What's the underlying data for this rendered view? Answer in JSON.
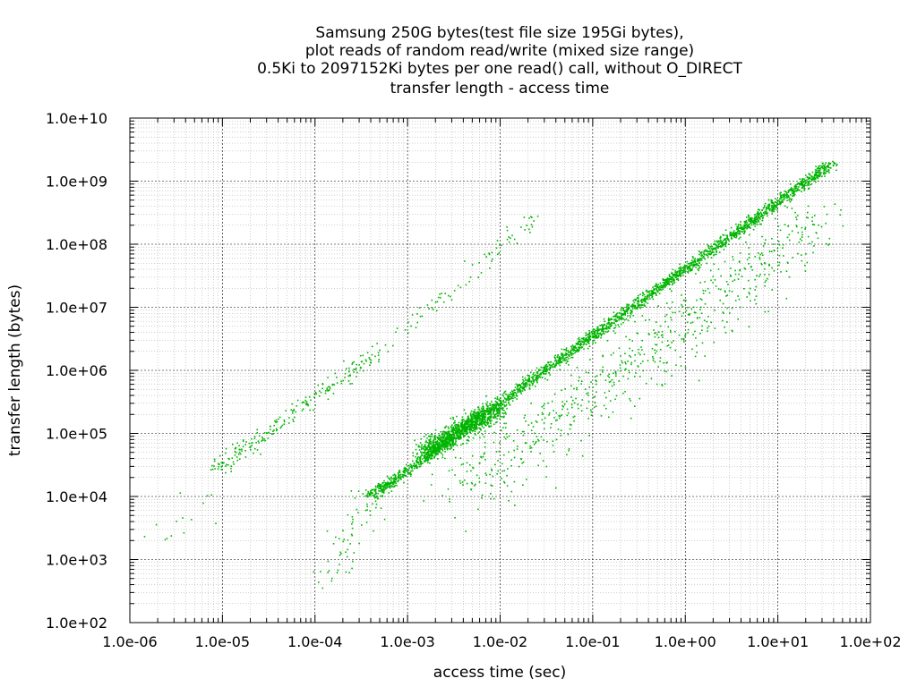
{
  "chart_data": {
    "type": "scatter",
    "title_lines": [
      "Samsung 250G bytes(test file size 195Gi bytes),",
      "plot reads of random read/write (mixed size range)",
      "0.5Ki to 2097152Ki bytes per one read() call, without O_DIRECT",
      "transfer length - access time"
    ],
    "xlabel": "access time (sec)",
    "ylabel": "transfer length (bytes)",
    "xscale": "log",
    "yscale": "log",
    "xlim": [
      1e-06,
      100
    ],
    "ylim": [
      100,
      10000000000
    ],
    "x_ticks": [
      "1.0e-06",
      "1.0e-05",
      "1.0e-04",
      "1.0e-03",
      "1.0e-02",
      "1.0e-01",
      "1.0e+00",
      "1.0e+01",
      "1.0e+02"
    ],
    "y_ticks": [
      "1.0e+02",
      "1.0e+03",
      "1.0e+04",
      "1.0e+05",
      "1.0e+06",
      "1.0e+07",
      "1.0e+08",
      "1.0e+09",
      "1.0e+10"
    ],
    "grid": true,
    "marker_color": "#00b400",
    "series": [
      {
        "clusters": [
          {
            "x": [
              0.0004,
              40
            ],
            "y": [
              10000,
              2000000000
            ],
            "n": 2600,
            "spread": 0.08
          },
          {
            "x": [
              0.0015,
              0.009
            ],
            "y": [
              50000,
              250000
            ],
            "n": 900,
            "spread": 0.15
          },
          {
            "x": [
              8e-06,
              0.0004
            ],
            "y": [
              25000,
              1500000
            ],
            "n": 220,
            "spread": 0.12
          },
          {
            "x": [
              0.0004,
              0.025
            ],
            "y": [
              1500000,
              300000000
            ],
            "n": 90,
            "spread": 0.12
          },
          {
            "x": [
              0.00014,
              0.0004
            ],
            "y": [
              500,
              10000
            ],
            "n": 60,
            "spread": 0.2
          },
          {
            "x": [
              2e-06,
              7e-06
            ],
            "y": [
              1500,
              10000
            ],
            "n": 14,
            "spread": 0.25
          },
          {
            "x": [
              0.004,
              30
            ],
            "y": [
              30000,
              500000000
            ],
            "n": 700,
            "scatter": "below",
            "spread": 0.4
          }
        ]
      }
    ]
  }
}
